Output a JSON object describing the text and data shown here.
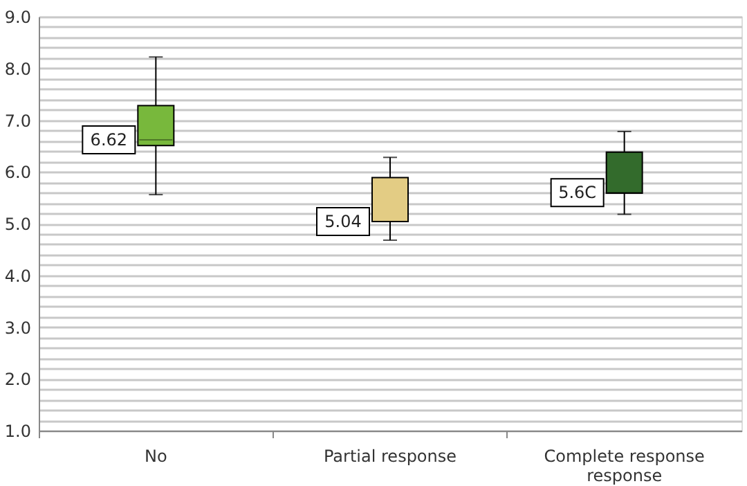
{
  "chart_data": {
    "type": "box",
    "categories": [
      "No",
      "Partial response",
      "Complete response\nresponse"
    ],
    "boxes": [
      {
        "low": 5.56,
        "q1": 6.51,
        "median": 6.62,
        "q3": 7.28,
        "high": 8.22
      },
      {
        "low": 4.68,
        "q1": 5.04,
        "median": 5.04,
        "q3": 5.89,
        "high": 6.28
      },
      {
        "low": 5.18,
        "q1": 5.59,
        "median": 5.6,
        "q3": 6.38,
        "high": 6.78
      }
    ],
    "colors": [
      "#78b83c",
      "#e3cc84",
      "#336b2c"
    ],
    "value_labels": [
      "6.62",
      "5.04",
      "5.6C"
    ],
    "ylim": [
      1.0,
      9.0
    ],
    "yticks": [
      {
        "value": 1.0,
        "label": "1.0"
      },
      {
        "value": 1.2,
        "label": null
      },
      {
        "value": 1.4,
        "label": null
      },
      {
        "value": 1.6,
        "label": null
      },
      {
        "value": 1.8,
        "label": null
      },
      {
        "value": 2.0,
        "label": "2.0"
      },
      {
        "value": 2.2,
        "label": null
      },
      {
        "value": 2.4,
        "label": null
      },
      {
        "value": 2.6,
        "label": null
      },
      {
        "value": 2.8,
        "label": null
      },
      {
        "value": 3.0,
        "label": "3.0"
      },
      {
        "value": 3.2,
        "label": null
      },
      {
        "value": 3.4,
        "label": null
      },
      {
        "value": 3.6,
        "label": null
      },
      {
        "value": 3.8,
        "label": null
      },
      {
        "value": 4.0,
        "label": "4.0"
      },
      {
        "value": 4.2,
        "label": null
      },
      {
        "value": 4.4,
        "label": null
      },
      {
        "value": 4.6,
        "label": null
      },
      {
        "value": 4.8,
        "label": null
      },
      {
        "value": 5.0,
        "label": "5.0"
      },
      {
        "value": 5.2,
        "label": null
      },
      {
        "value": 5.4,
        "label": null
      },
      {
        "value": 5.6,
        "label": null
      },
      {
        "value": 5.8,
        "label": null
      },
      {
        "value": 6.0,
        "label": "6.0"
      },
      {
        "value": 6.2,
        "label": null
      },
      {
        "value": 6.4,
        "label": null
      },
      {
        "value": 6.6,
        "label": null
      },
      {
        "value": 6.8,
        "label": null
      },
      {
        "value": 7.0,
        "label": "7.0"
      },
      {
        "value": 7.2,
        "label": null
      },
      {
        "value": 7.4,
        "label": null
      },
      {
        "value": 7.6,
        "label": null
      },
      {
        "value": 7.8,
        "label": null
      },
      {
        "value": 8.0,
        "label": "8.0"
      },
      {
        "value": 8.2,
        "label": null
      },
      {
        "value": 8.4,
        "label": null
      },
      {
        "value": 8.6,
        "label": null
      },
      {
        "value": 8.8,
        "label": null
      },
      {
        "value": 9.0,
        "label": "9.0"
      }
    ],
    "grid": "y"
  }
}
